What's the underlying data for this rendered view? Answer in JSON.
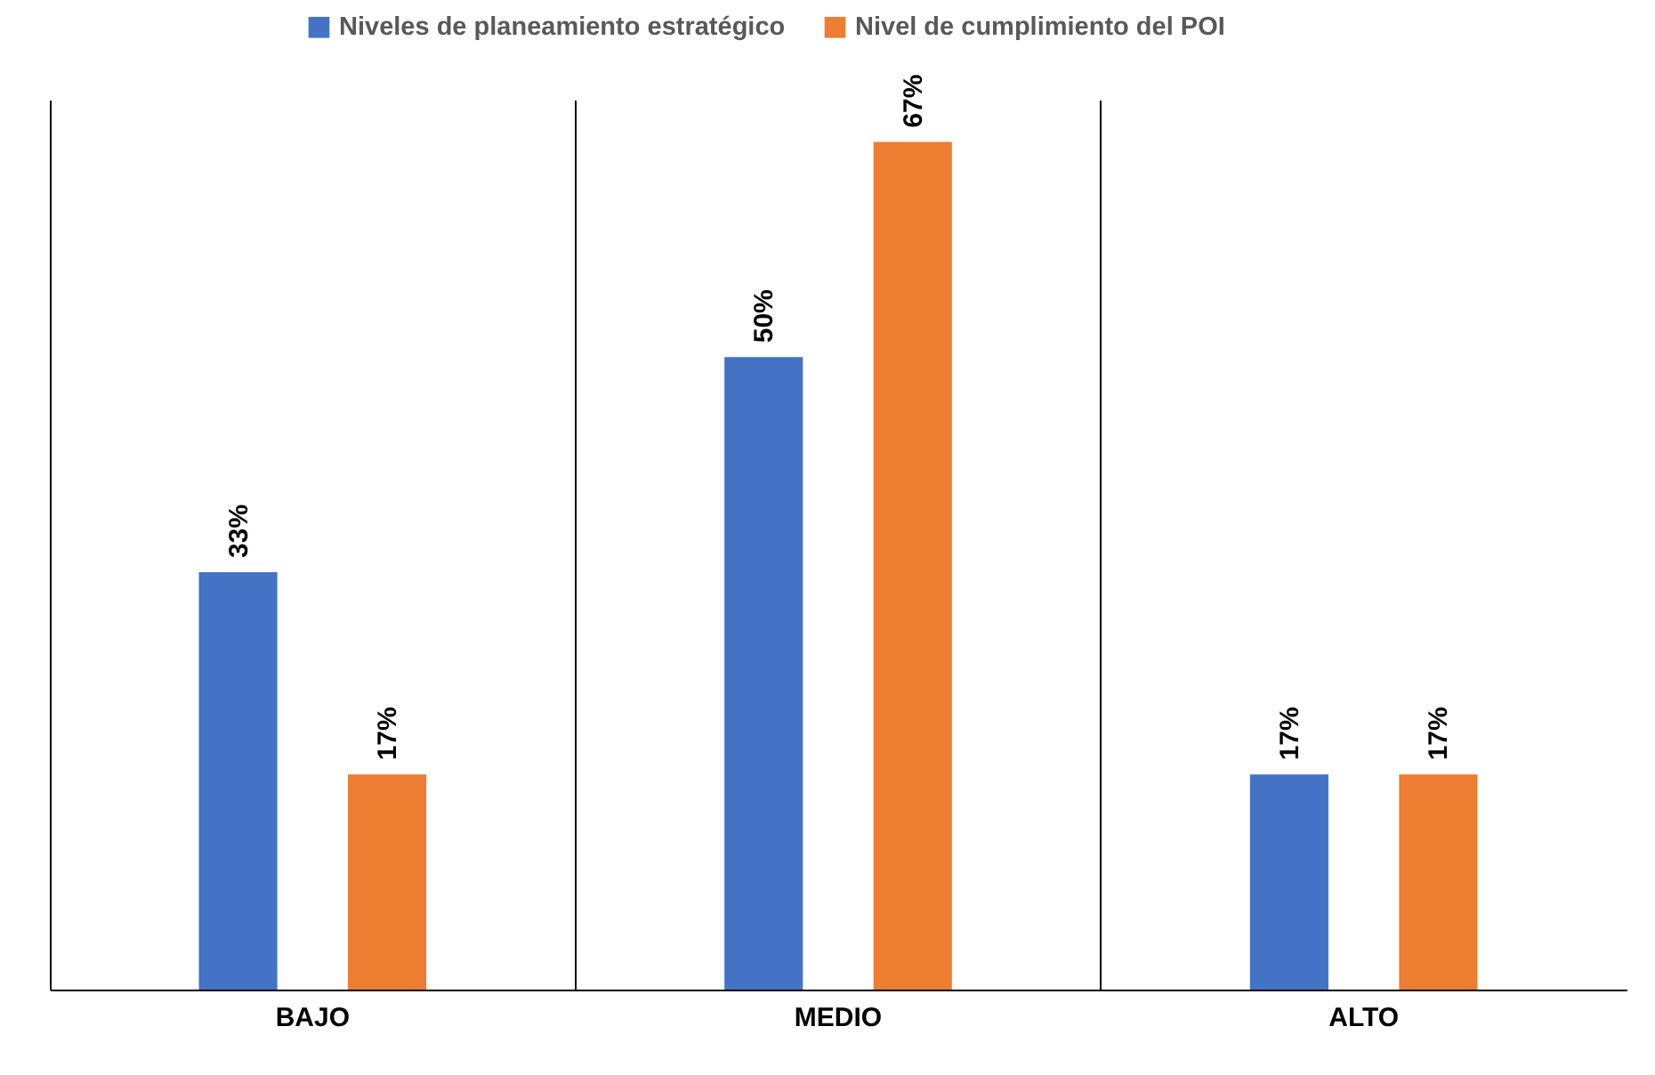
{
  "chart_data": {
    "type": "bar",
    "categories": [
      "BAJO",
      "MEDIO",
      "ALTO"
    ],
    "series": [
      {
        "name": "Niveles de planeamiento estratégico",
        "color": "#4472c4",
        "values": [
          33,
          50,
          17
        ],
        "value_labels": [
          "33%",
          "50%",
          "17%"
        ]
      },
      {
        "name": "Nivel de cumplimiento del POI",
        "color": "#ed7d31",
        "values": [
          17,
          67,
          17
        ],
        "value_labels": [
          "17%",
          "67%",
          "17%"
        ]
      }
    ],
    "legend": "top",
    "grid": "x"
  }
}
